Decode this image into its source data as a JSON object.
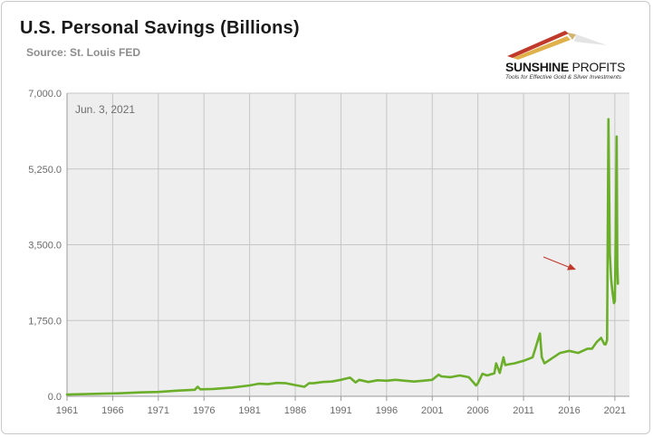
{
  "header": {
    "title": "U.S. Personal Savings (Billions)",
    "source": "Source: St. Louis FED"
  },
  "logo": {
    "name_bold": "SUNSHINE",
    "name_light": "PROFITS",
    "tagline": "Tools for Effective Gold & Silver Investments"
  },
  "colors": {
    "series": "#6aae2a",
    "plot_bg": "#eeeeee",
    "grid": "#c6c6c6",
    "arrow": "#c0392b",
    "logo_red": "#c0392b",
    "logo_gold": "#e0b14a"
  },
  "chart_data": {
    "type": "line",
    "annotation": "Jun. 3, 2021",
    "ylim": [
      0,
      7000
    ],
    "yticks": [
      "0.0",
      "1,750.0",
      "3,500.0",
      "5,250.0",
      "7,000.0"
    ],
    "xlim": [
      1961,
      2022.6
    ],
    "xticks": [
      "1961",
      "1966",
      "1971",
      "1976",
      "1981",
      "1986",
      "1991",
      "1996",
      "2001",
      "2006",
      "2011",
      "2016",
      "2021"
    ],
    "grid": true,
    "legend": "none",
    "series": [
      {
        "x": [
          1961,
          1963,
          1965,
          1967,
          1969,
          1971,
          1973,
          1975,
          1975.3,
          1975.6,
          1977,
          1979,
          1981,
          1982,
          1983,
          1984,
          1985,
          1986,
          1987,
          1987.5,
          1988,
          1989,
          1990,
          1991,
          1992,
          1992.6,
          1993,
          1994,
          1995,
          1996,
          1997,
          1998,
          1999,
          2000,
          2001,
          2001.7,
          2002,
          2003,
          2004,
          2005,
          2005.8,
          2006,
          2006.5,
          2007,
          2007.8,
          2008,
          2008.4,
          2008.8,
          2009,
          2009.4,
          2010,
          2011,
          2012,
          2012.8,
          2013,
          2013.3,
          2014,
          2015,
          2016,
          2017,
          2018,
          2018.5,
          2019,
          2019.5,
          2019.85,
          2020,
          2020.15,
          2020.3,
          2020.45,
          2020.6,
          2020.75,
          2020.9,
          2021.0,
          2021.1,
          2021.2,
          2021.27,
          2021.34
        ],
        "y": [
          40,
          50,
          60,
          70,
          90,
          100,
          130,
          150,
          220,
          160,
          170,
          200,
          250,
          290,
          280,
          310,
          300,
          260,
          220,
          300,
          300,
          330,
          340,
          380,
          430,
          320,
          380,
          330,
          370,
          360,
          380,
          360,
          340,
          360,
          380,
          500,
          460,
          440,
          480,
          440,
          250,
          300,
          520,
          480,
          530,
          760,
          540,
          900,
          720,
          740,
          760,
          820,
          900,
          1450,
          900,
          760,
          860,
          1000,
          1050,
          1000,
          1100,
          1100,
          1250,
          1350,
          1200,
          1200,
          1300,
          6400,
          3300,
          2700,
          2400,
          2150,
          2200,
          3800,
          6000,
          3000,
          2600
        ]
      }
    ]
  }
}
